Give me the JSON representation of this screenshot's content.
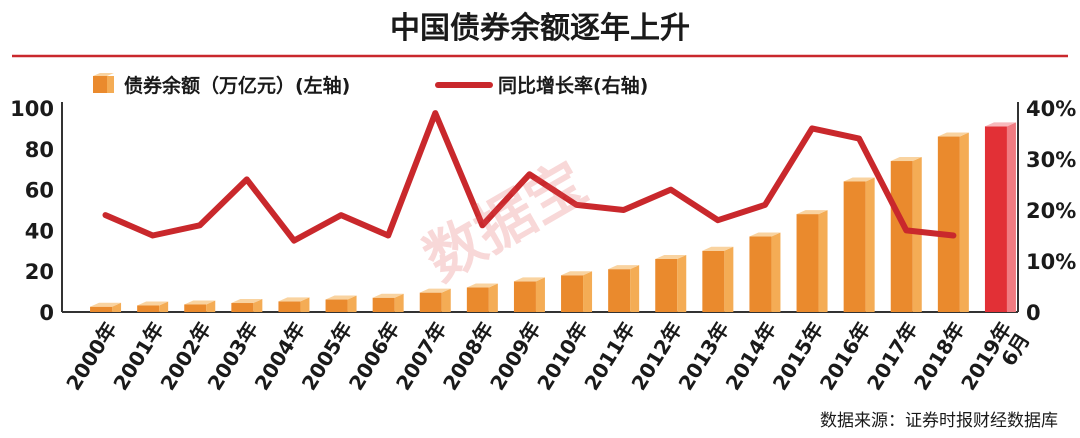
{
  "chart_data": {
    "type": "bar+line",
    "title": "中国债券余额逐年上升",
    "categories": [
      [
        "2000年"
      ],
      [
        "2001年"
      ],
      [
        "2002年"
      ],
      [
        "2003年"
      ],
      [
        "2004年"
      ],
      [
        "2005年"
      ],
      [
        "2006年"
      ],
      [
        "2007年"
      ],
      [
        "2008年"
      ],
      [
        "2009年"
      ],
      [
        "2010年"
      ],
      [
        "2011年"
      ],
      [
        "2012年"
      ],
      [
        "2013年"
      ],
      [
        "2014年"
      ],
      [
        "2015年"
      ],
      [
        "2016年"
      ],
      [
        "2017年"
      ],
      [
        "2018年"
      ],
      [
        "2019年",
        "6月"
      ]
    ],
    "bar_series": {
      "name": "债券余额（万亿元）(左轴)",
      "values": [
        2.6,
        3.2,
        3.7,
        4.4,
        5.2,
        6.1,
        7.0,
        9.5,
        12,
        15,
        18,
        21,
        26,
        30,
        37,
        48,
        64,
        74,
        86,
        91
      ]
    },
    "line_series": {
      "name": "同比增长率(右轴)",
      "values": [
        19,
        15,
        17,
        26,
        14,
        19,
        15,
        39,
        17,
        27,
        21,
        20,
        24,
        18,
        21,
        36,
        34,
        16,
        15,
        null
      ]
    },
    "y_left": {
      "ylim": [
        0,
        100
      ],
      "ticks": [
        "0",
        "20",
        "40",
        "60",
        "80",
        "100"
      ]
    },
    "y_right": {
      "ylim": [
        0,
        40
      ],
      "ticks": [
        "0",
        "10%",
        "20%",
        "30%",
        "40%"
      ]
    },
    "legend_position": "top-left",
    "watermark": "数据宝",
    "source": "数据来源：证券时报财经数据库",
    "colors": {
      "bar_front": "#ea8a2d",
      "bar_side": "#f4ac55",
      "bar_top": "#f9d3a0",
      "bar_last_front": "#e23036",
      "bar_last_side": "#f07b81",
      "line": "#c9282c"
    }
  }
}
